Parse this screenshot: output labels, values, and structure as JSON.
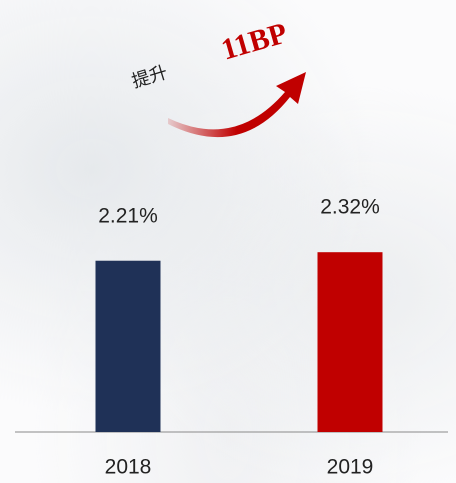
{
  "chart_data": {
    "type": "bar",
    "categories": [
      "2018",
      "2019"
    ],
    "values": [
      2.21,
      2.32
    ],
    "value_labels": [
      "2.21%",
      "2.32%"
    ],
    "colors": [
      "#1f3157",
      "#c00000"
    ],
    "annotations": [
      "提升",
      "11BP"
    ]
  }
}
